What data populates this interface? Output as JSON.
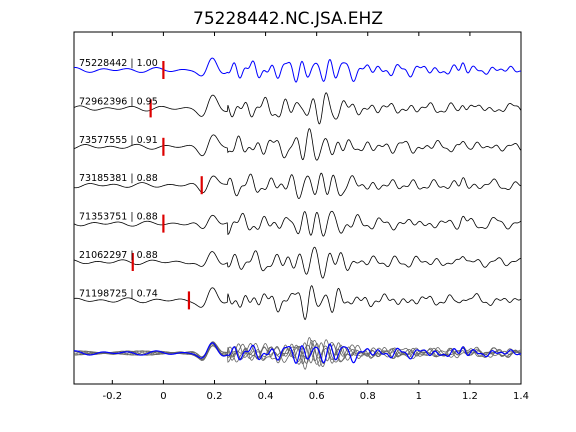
{
  "chart_data": {
    "type": "line",
    "title": "75228442.NC.JSA.EHZ",
    "xlabel": "",
    "ylabel": "",
    "xlim": [
      -0.35,
      1.4
    ],
    "xticks": [
      -0.2,
      0,
      0.2,
      0.4,
      0.6,
      0.8,
      1,
      1.2,
      1.4
    ],
    "xtick_labels": [
      "-0.2",
      "0",
      "0.2",
      "0.4",
      "0.6",
      "0.8",
      "1",
      "1.2",
      "1.4"
    ],
    "grid": false,
    "legend": "none",
    "colors": {
      "reference": "#0000ff",
      "trace": "#000000",
      "pick": "#dd0000",
      "stack_trace": "#666666"
    },
    "series": [
      {
        "name": "75228442 | 1.00",
        "pick_time": 0.0,
        "reference": true,
        "seed": 1
      },
      {
        "name": "72962396 | 0.95",
        "pick_time": -0.05,
        "reference": false,
        "seed": 2
      },
      {
        "name": "73577555 | 0.91",
        "pick_time": 0.0,
        "reference": false,
        "seed": 3
      },
      {
        "name": "73185381 | 0.88",
        "pick_time": 0.15,
        "reference": false,
        "seed": 4
      },
      {
        "name": "71353751 | 0.88",
        "pick_time": 0.0,
        "reference": false,
        "seed": 5
      },
      {
        "name": "21062297 | 0.88",
        "pick_time": -0.12,
        "reference": false,
        "seed": 6
      },
      {
        "name": "71198725 | 0.74",
        "pick_time": 0.1,
        "reference": false,
        "seed": 7
      }
    ],
    "stack": {
      "overlaid": true,
      "reference_color": "#0000ff"
    }
  }
}
